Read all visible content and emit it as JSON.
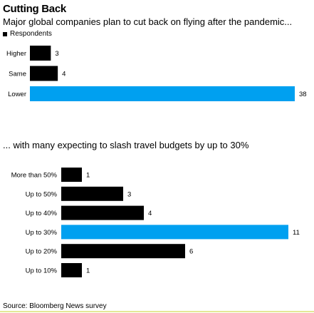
{
  "header": {
    "title": "Cutting Back",
    "subtitle": "Major global companies plan to cut back on flying after the pandemic...",
    "legend_label": "Respondents"
  },
  "second_header": {
    "subtitle": "... with many expecting to slash travel budgets by up to 30%"
  },
  "footer": {
    "source": "Source: Bloomberg News survey"
  },
  "colors": {
    "default_bar": "#000000",
    "highlight_bar": "#00a0f0"
  },
  "chart_data": [
    {
      "type": "bar",
      "orientation": "horizontal",
      "categories": [
        "Higher",
        "Same",
        "Lower"
      ],
      "values": [
        3,
        4,
        38
      ],
      "highlight": "Lower",
      "series": [
        {
          "name": "Respondents",
          "values": [
            3,
            4,
            38
          ]
        }
      ],
      "xlim": [
        0,
        38
      ]
    },
    {
      "type": "bar",
      "orientation": "horizontal",
      "categories": [
        "More than 50%",
        "Up to 50%",
        "Up to 40%",
        "Up to 30%",
        "Up to 20%",
        "Up to 10%"
      ],
      "values": [
        1,
        3,
        4,
        11,
        6,
        1
      ],
      "highlight": "Up to 30%",
      "xlim": [
        0,
        11
      ]
    }
  ]
}
